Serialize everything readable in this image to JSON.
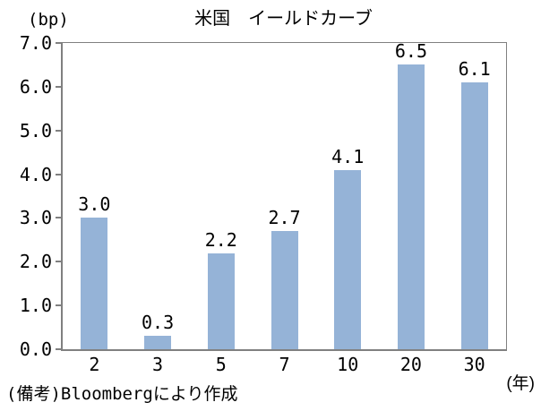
{
  "chart_data": {
    "type": "bar",
    "title": "米国　イールドカーブ",
    "y_unit_label": "(bp)",
    "x_unit_label": "(年)",
    "footnote": "(備考)Bloombergにより作成",
    "categories": [
      "2",
      "3",
      "5",
      "7",
      "10",
      "20",
      "30"
    ],
    "values": [
      3.0,
      0.3,
      2.2,
      2.7,
      4.1,
      6.5,
      6.1
    ],
    "data_labels": [
      "3.0",
      "0.3",
      "2.2",
      "2.7",
      "4.1",
      "6.5",
      "6.1"
    ],
    "ylim": [
      0,
      7
    ],
    "ytick_labels": [
      "0.0",
      "1.0",
      "2.0",
      "3.0",
      "4.0",
      "5.0",
      "6.0",
      "7.0"
    ],
    "grid": false,
    "legend": "none",
    "bar_color": "#95B3D7",
    "axis_color": "#808080",
    "text_color": "#000000"
  }
}
